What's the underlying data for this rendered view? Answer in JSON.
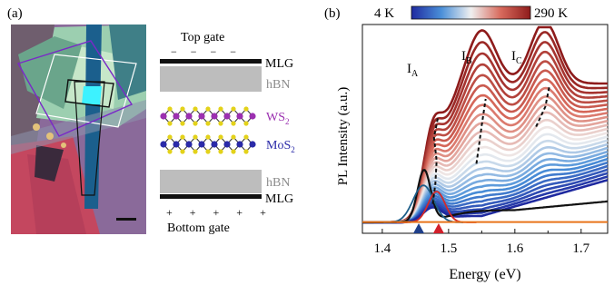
{
  "panel_a": {
    "label": "(a)",
    "top_gate_label": "Top gate",
    "top_gate_charges": "− − − −",
    "bottom_gate_label": "Bottom gate",
    "bottom_gate_charges": "+ + + + +",
    "layers": {
      "mlg_top": "MLG",
      "hbn_top": "hBN",
      "ws2_main": "WS",
      "ws2_sub": "2",
      "mos2_main": "MoS",
      "mos2_sub": "2",
      "hbn_bottom": "hBN",
      "mlg_bottom": "MLG"
    },
    "colors": {
      "ws2": "#9b30b0",
      "mos2": "#2a2aa8",
      "chalcogen": "#e3d21a",
      "hbn": "#bdbdbd",
      "hbn_text": "#8c8c8c"
    }
  },
  "panel_b": {
    "label": "(b)",
    "colorbar": {
      "low_label": "4 K",
      "high_label": "290 K",
      "low_color": "#1f2aa0",
      "mid_color": "#f2f2f2",
      "high_color": "#8e1b1b"
    },
    "peaks": {
      "a_main": "I",
      "a_sub": "A",
      "b_main": "I",
      "b_sub": "B",
      "c_main": "I",
      "c_sub": "C"
    },
    "marker_colors": [
      "#1f3f8a",
      "#d21f2a"
    ]
  },
  "chart_data": {
    "type": "line",
    "title": "",
    "xlabel": "Energy (eV)",
    "ylabel": "PL Intensity (a.u.)",
    "xlim": [
      1.37,
      1.74
    ],
    "xticks": [
      "1.4",
      "1.5",
      "1.6",
      "1.7"
    ],
    "xtick_values": [
      1.4,
      1.5,
      1.6,
      1.7
    ],
    "temperature_range_K": [
      4,
      290
    ],
    "markers_eV": [
      1.455,
      1.485
    ],
    "fit_components": [
      {
        "center_eV": 1.462,
        "color": "#1e5f8a"
      },
      {
        "center_eV": 1.482,
        "color": "#d42a2a"
      },
      {
        "center_eV": 1.47,
        "color": "#e8741a"
      }
    ],
    "peak_tracks_eV": {
      "IA": [
        [
          1.476,
          0.12
        ],
        [
          1.48,
          0.25
        ],
        [
          1.482,
          0.4
        ],
        [
          1.478,
          0.55
        ],
        [
          1.484,
          0.68
        ]
      ],
      "IB": [
        [
          1.542,
          0.38
        ],
        [
          1.546,
          0.5
        ],
        [
          1.55,
          0.63
        ],
        [
          1.556,
          0.8
        ]
      ],
      "IC": [
        [
          1.632,
          0.62
        ],
        [
          1.646,
          0.75
        ],
        [
          1.652,
          0.88
        ]
      ]
    }
  }
}
